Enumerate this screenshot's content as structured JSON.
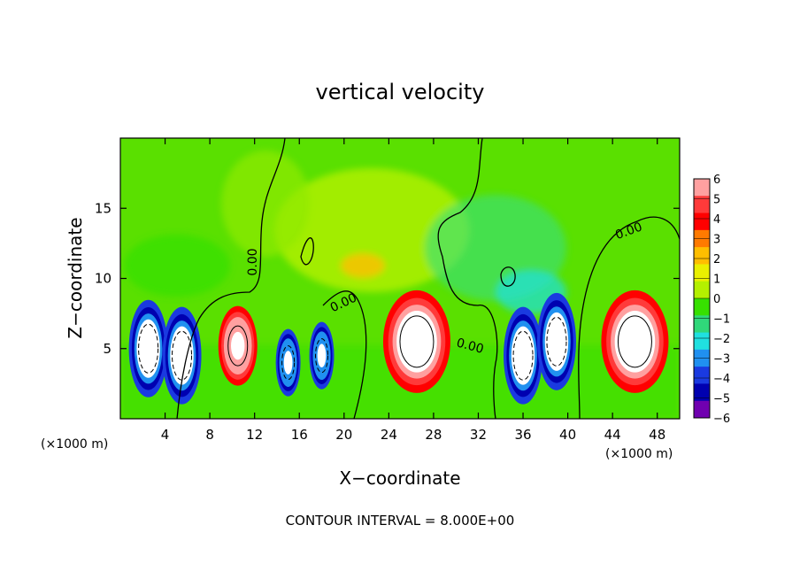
{
  "chart_data": {
    "type": "heatmap",
    "title": "vertical velocity",
    "xlabel": "X−coordinate",
    "ylabel": "Z−coordinate",
    "x_unit": "(×1000 m)",
    "x_unit_right": "(×1000 m)",
    "xlim": [
      0,
      50
    ],
    "ylim": [
      0,
      20
    ],
    "x_ticks": [
      4,
      8,
      12,
      16,
      20,
      24,
      28,
      32,
      36,
      40,
      44,
      48
    ],
    "y_ticks": [
      5,
      10,
      15
    ],
    "colorbar": {
      "levels": [
        "6",
        "5",
        "4",
        "3",
        "2",
        "1",
        "0",
        "−1",
        "−2",
        "−3",
        "−4",
        "−5",
        "−6"
      ],
      "colors": [
        "#ffa0a0",
        "#ff3a3a",
        "#ff0000",
        "#ff7a00",
        "#ffbe00",
        "#eaf000",
        "#b4f000",
        "#37e000",
        "#30d87a",
        "#20e0e0",
        "#2090f0",
        "#1a3ae0",
        "#0000b0",
        "#7000b0"
      ]
    },
    "contour_labels": [
      "0.00",
      "0.00",
      "0.00",
      "0.00"
    ],
    "contour_interval_text": "CONTOUR INTERVAL = 8.000E+00",
    "features": [
      {
        "x": 2.5,
        "z": 5.0,
        "value": -8,
        "sign": "down"
      },
      {
        "x": 5.5,
        "z": 4.5,
        "value": -8,
        "sign": "down"
      },
      {
        "x": 10.5,
        "z": 5.2,
        "value": 6,
        "sign": "up"
      },
      {
        "x": 15.0,
        "z": 4.0,
        "value": -5,
        "sign": "down"
      },
      {
        "x": 18.0,
        "z": 4.5,
        "value": -5,
        "sign": "down"
      },
      {
        "x": 26.5,
        "z": 5.5,
        "value": 8,
        "sign": "up"
      },
      {
        "x": 36.0,
        "z": 4.5,
        "value": -8,
        "sign": "down"
      },
      {
        "x": 39.0,
        "z": 5.5,
        "value": -8,
        "sign": "down"
      },
      {
        "x": 46.0,
        "z": 5.5,
        "value": 8,
        "sign": "up"
      }
    ]
  }
}
